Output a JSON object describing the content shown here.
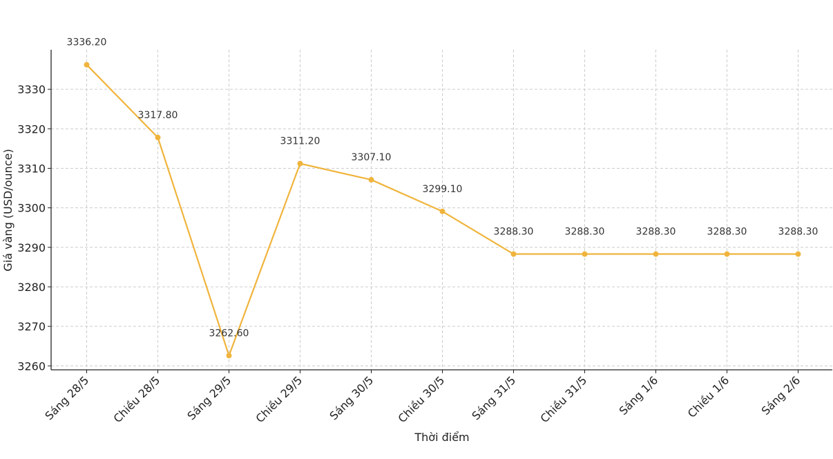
{
  "chart_data": {
    "type": "line",
    "title": "",
    "xlabel": "Thời điểm",
    "ylabel": "Giá vàng (USD/ounce)",
    "categories": [
      "Sáng 28/5",
      "Chiều 28/5",
      "Sáng 29/5",
      "Chiều 29/5",
      "Sáng 30/5",
      "Chiều 30/5",
      "Sáng 31/5",
      "Chiều 31/5",
      "Sáng 1/6",
      "Chiều 1/6",
      "Sáng 2/6"
    ],
    "series": [
      {
        "values": [
          3336.2,
          3317.8,
          3262.6,
          3311.2,
          3307.1,
          3299.1,
          3288.3,
          3288.3,
          3288.3,
          3288.3,
          3288.3
        ],
        "color": "#f0b43c"
      }
    ],
    "data_labels": [
      "3336.20",
      "3317.80",
      "3262.60",
      "3311.20",
      "3307.10",
      "3299.10",
      "3288.30",
      "3288.30",
      "3288.30",
      "3288.30",
      "3288.30"
    ],
    "y_ticks": [
      3260,
      3270,
      3280,
      3290,
      3300,
      3310,
      3320,
      3330
    ],
    "ylim": [
      3259,
      3340
    ],
    "grid": true,
    "legend": "none"
  }
}
